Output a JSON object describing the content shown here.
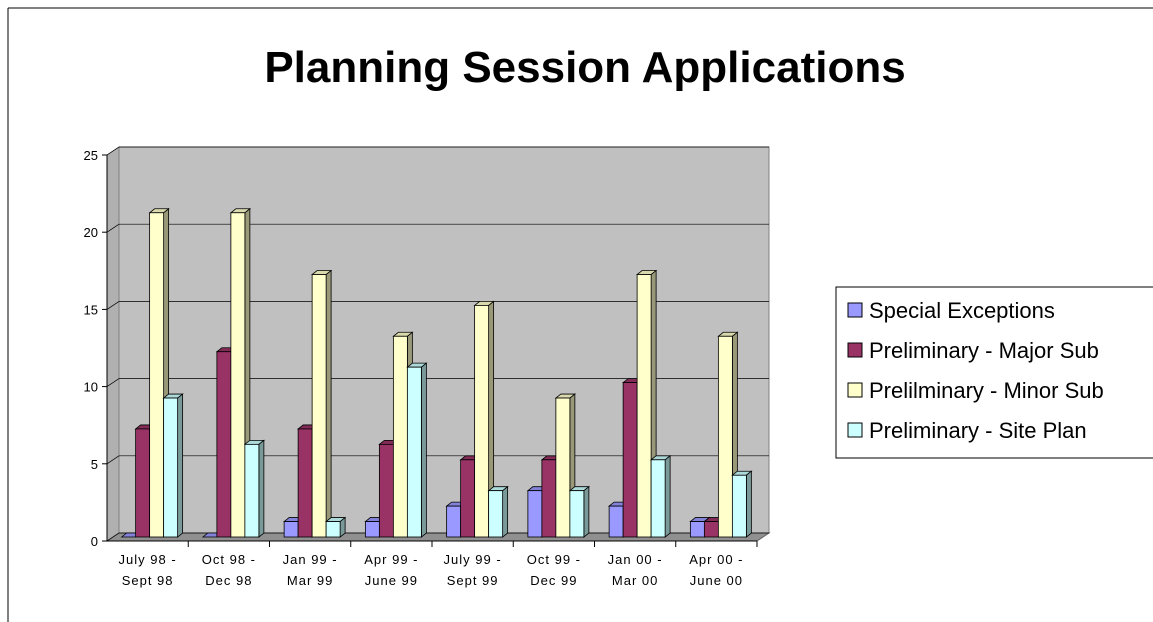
{
  "chart_data": {
    "type": "bar",
    "title": "Planning Session Applications",
    "categories": [
      "July 98 - Sept 98",
      "Oct 98 - Dec 98",
      "Jan 99 - Mar 99",
      "Apr 99 - June 99",
      "July 99 - Sept 99",
      "Oct 99 - Dec 99",
      "Jan 00 - Mar 00",
      "Apr 00 - June 00"
    ],
    "series": [
      {
        "name": "Special Exceptions",
        "color": "#9999ff",
        "values": [
          0,
          0,
          1,
          1,
          2,
          3,
          2,
          1
        ]
      },
      {
        "name": "Preliminary - Major Sub",
        "color": "#993366",
        "values": [
          7,
          12,
          7,
          6,
          5,
          5,
          10,
          1
        ]
      },
      {
        "name": "Prelilminary - Minor Sub",
        "color": "#ffffcc",
        "values": [
          21,
          21,
          17,
          13,
          15,
          9,
          17,
          13
        ]
      },
      {
        "name": "Preliminary - Site Plan",
        "color": "#ccffff",
        "values": [
          9,
          6,
          1,
          11,
          3,
          3,
          5,
          4
        ]
      }
    ],
    "ylim": [
      0,
      25
    ],
    "yticks": [
      0,
      5,
      10,
      15,
      20,
      25
    ],
    "grid": true,
    "legend": "right"
  }
}
